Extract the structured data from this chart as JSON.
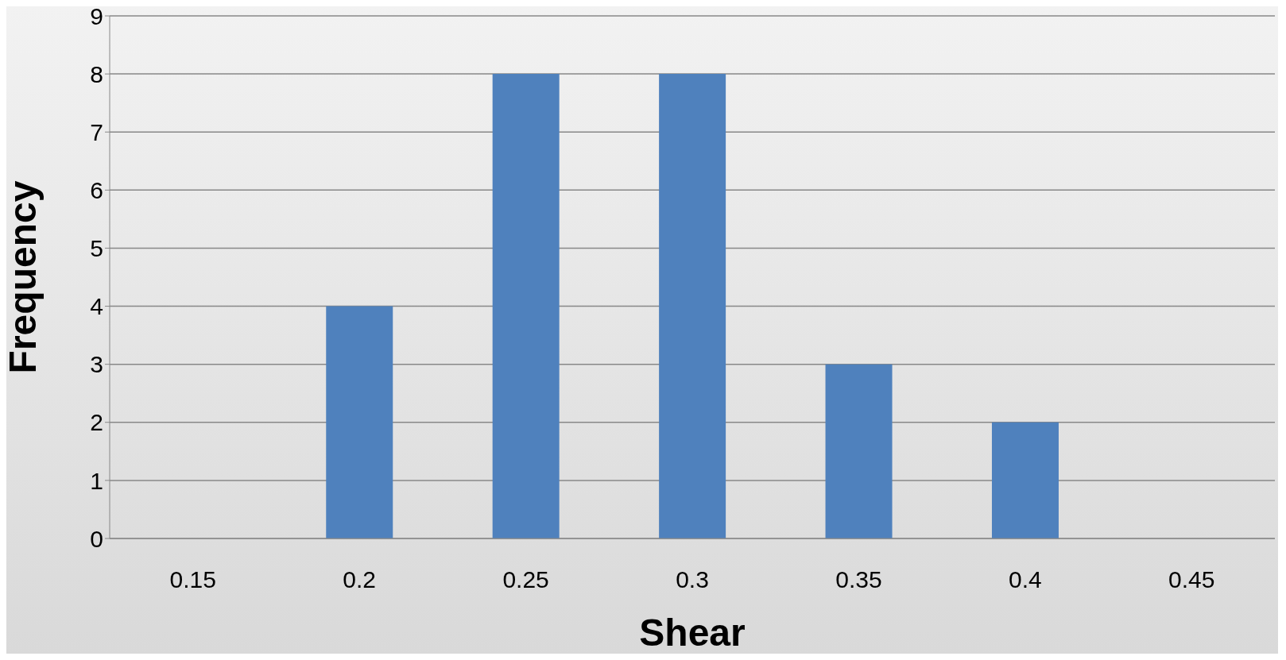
{
  "chart_data": {
    "type": "bar",
    "xlabel": "Shear",
    "ylabel": "Frequency",
    "categories": [
      "0.15",
      "0.2",
      "0.25",
      "0.3",
      "0.35",
      "0.4",
      "0.45"
    ],
    "values": [
      0,
      4,
      8,
      8,
      3,
      2,
      0
    ],
    "color": "#4f81bd",
    "ylim": [
      0,
      9
    ],
    "yticks": [
      0,
      1,
      2,
      3,
      4,
      5,
      6,
      7,
      8,
      9
    ],
    "grid": "y"
  }
}
